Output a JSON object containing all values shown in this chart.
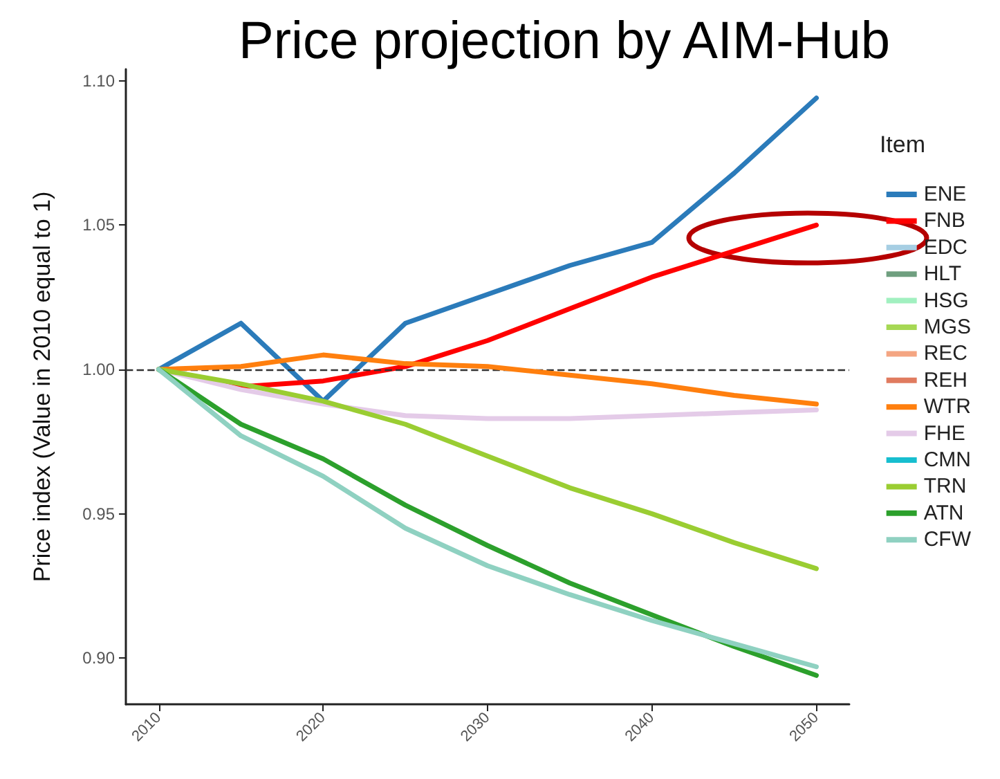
{
  "chart_data": {
    "type": "line",
    "title": "Price projection by AIM-Hub",
    "ylabel": "Price index (Value in 2010 equal to 1)",
    "legend_title": "Item",
    "legend": "right",
    "grid": false,
    "line_style": "solid",
    "marker": "none",
    "x": [
      2010,
      2015,
      2020,
      2025,
      2030,
      2035,
      2040,
      2045,
      2050
    ],
    "xlim": [
      2008,
      2052
    ],
    "xticks": [
      2010,
      2020,
      2030,
      2040,
      2050
    ],
    "ylim": [
      0.884,
      1.104
    ],
    "yticks": [
      {
        "value": 0.9,
        "label": "0.90"
      },
      {
        "value": 0.95,
        "label": "0.95"
      },
      {
        "value": 1.0,
        "label": "1.00"
      },
      {
        "value": 1.05,
        "label": "1.05"
      },
      {
        "value": 1.1,
        "label": "1.10"
      }
    ],
    "ref_lines": [
      {
        "axis": "y",
        "value": 1.0,
        "color": "#333333",
        "line_style": "dashed"
      }
    ],
    "series": [
      {
        "name": "ENE",
        "color": "#2b7bba",
        "values": [
          1.0,
          1.016,
          0.989,
          1.016,
          1.026,
          1.036,
          1.044,
          1.068,
          1.094
        ]
      },
      {
        "name": "FNB",
        "color": "#ff0000",
        "values": [
          1.0,
          0.994,
          0.996,
          1.001,
          1.01,
          1.021,
          1.032,
          1.041,
          1.05
        ]
      },
      {
        "name": "EDC",
        "color": "#a6cee3",
        "values": [
          null,
          null,
          null,
          null,
          null,
          null,
          null,
          null,
          null
        ]
      },
      {
        "name": "HLT",
        "color": "#6f9f7f",
        "values": [
          null,
          null,
          null,
          null,
          null,
          null,
          null,
          null,
          null
        ]
      },
      {
        "name": "HSG",
        "color": "#a1f0c0",
        "values": [
          null,
          null,
          null,
          null,
          null,
          null,
          null,
          null,
          null
        ]
      },
      {
        "name": "MGS",
        "color": "#a6d854",
        "values": [
          null,
          null,
          null,
          null,
          null,
          null,
          null,
          null,
          null
        ]
      },
      {
        "name": "REC",
        "color": "#f4a582",
        "values": [
          null,
          null,
          null,
          null,
          null,
          null,
          null,
          null,
          null
        ]
      },
      {
        "name": "REH",
        "color": "#e07b5f",
        "values": [
          null,
          null,
          null,
          null,
          null,
          null,
          null,
          null,
          null
        ]
      },
      {
        "name": "WTR",
        "color": "#ff7f0e",
        "values": [
          1.0,
          1.001,
          1.005,
          1.002,
          1.001,
          0.998,
          0.995,
          0.991,
          0.988
        ]
      },
      {
        "name": "FHE",
        "color": "#e4cbe8",
        "values": [
          1.0,
          0.993,
          0.988,
          0.984,
          0.983,
          0.983,
          0.984,
          0.985,
          0.986
        ]
      },
      {
        "name": "CMN",
        "color": "#17becf",
        "values": [
          null,
          null,
          null,
          null,
          null,
          null,
          null,
          null,
          null
        ]
      },
      {
        "name": "TRN",
        "color": "#9acd32",
        "values": [
          1.0,
          0.995,
          0.989,
          0.981,
          0.97,
          0.959,
          0.95,
          0.94,
          0.931
        ]
      },
      {
        "name": "ATN",
        "color": "#2ca02c",
        "values": [
          1.0,
          0.981,
          0.969,
          0.953,
          0.939,
          0.926,
          0.915,
          0.904,
          0.894
        ]
      },
      {
        "name": "CFW",
        "color": "#8fd1c1",
        "values": [
          1.0,
          0.977,
          0.963,
          0.945,
          0.932,
          0.922,
          0.913,
          0.905,
          0.897
        ]
      }
    ]
  }
}
